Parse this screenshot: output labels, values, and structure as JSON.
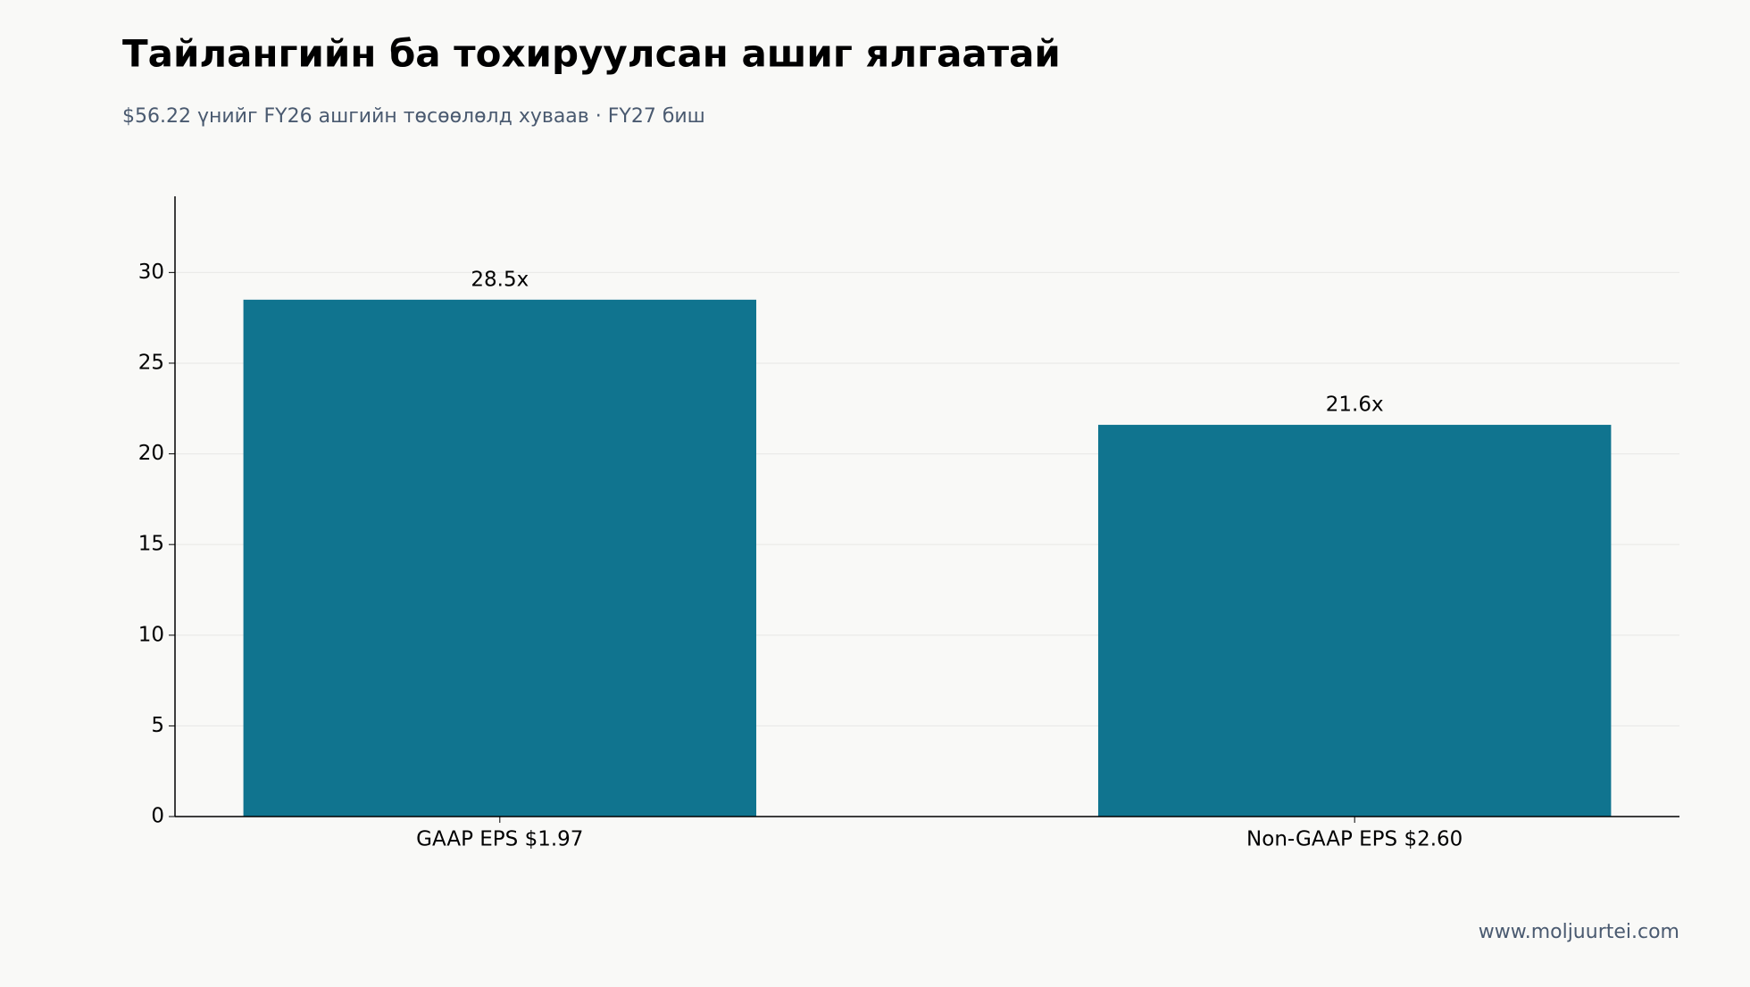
{
  "chart_data": {
    "type": "bar",
    "title": "Тайлангийн ба тохируулсан ашиг ялгаатай",
    "subtitle": "$56.22 үнийг FY26 ашгийн төсөөлөлд хуваав · FY27 биш",
    "categories": [
      "GAAP EPS $1.97",
      "Non-GAAP EPS $2.60"
    ],
    "values": [
      28.5,
      21.6
    ],
    "value_labels": [
      "28.5x",
      "21.6x"
    ],
    "color": "#10748f",
    "ylim": [
      0,
      34.2
    ],
    "yticks": [
      0,
      5,
      10,
      15,
      20,
      25,
      30
    ],
    "grid": true,
    "source": "www.moljuurtei.com"
  }
}
